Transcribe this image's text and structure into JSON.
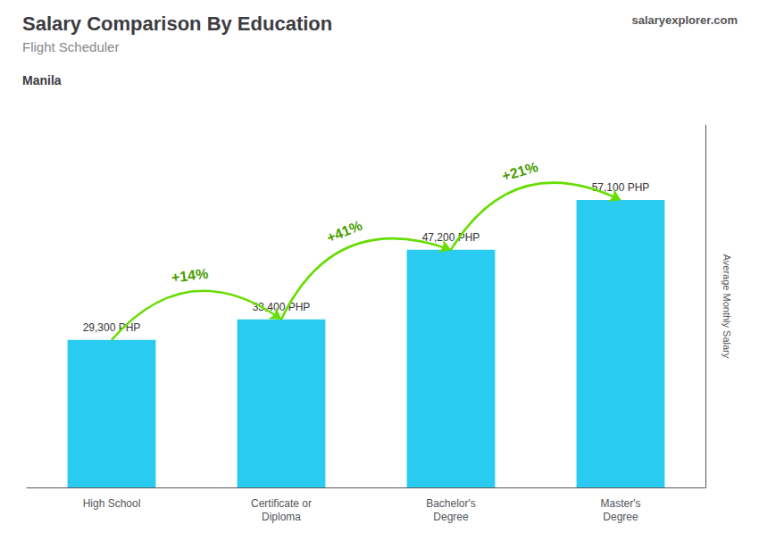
{
  "chart_data": {
    "type": "bar",
    "title": "Salary Comparison By Education",
    "subtitle": "Flight Scheduler",
    "annotations": [
      "Manila"
    ],
    "watermark": [
      "salary",
      "explorer",
      ".com"
    ],
    "ylabel": "Average Monthly Salary",
    "categories": [
      "High School",
      "Certificate or\nDiploma",
      "Bachelor's\nDegree",
      "Master's\nDegree"
    ],
    "values": [
      29300,
      33400,
      47200,
      57100
    ],
    "value_labels": [
      "29,300 PHP",
      "33,400 PHP",
      "47,200 PHP",
      "57,100 PHP"
    ],
    "data_labels": true,
    "pct_changes": [
      "+14%",
      "+41%",
      "+21%"
    ],
    "color": "#29ccf0",
    "ylim": [
      0,
      72000
    ],
    "tick_labels": "x",
    "grid": false
  }
}
